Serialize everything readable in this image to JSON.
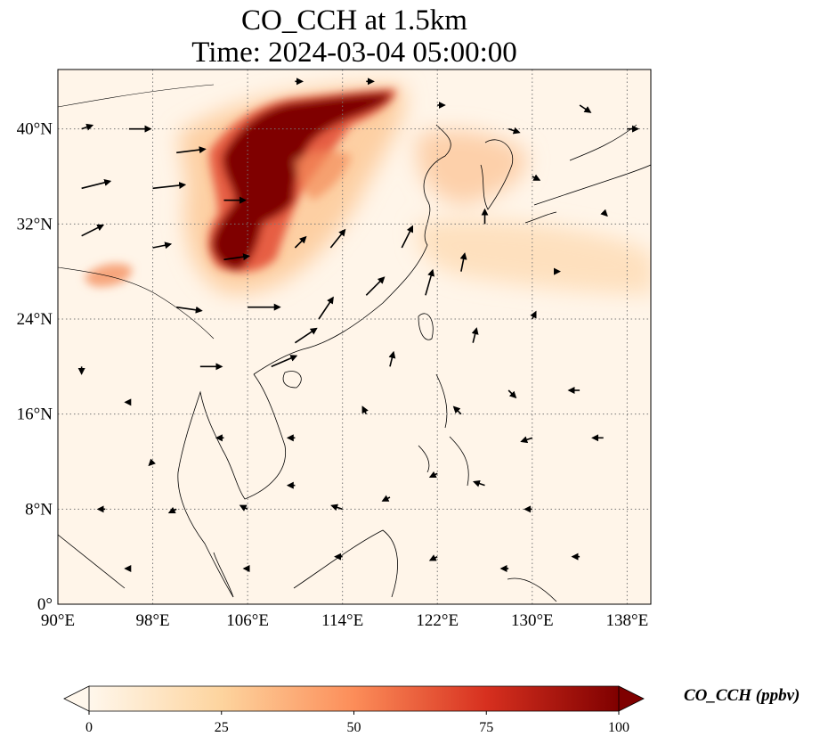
{
  "title": {
    "line1": "CO_CCH at 1.5km",
    "line2": "Time: 2024-03-04 05:00:00"
  },
  "map": {
    "projection": "PlateCarree",
    "lon_range": [
      90,
      140
    ],
    "lat_range": [
      0,
      45
    ],
    "gridlines": "dotted grey",
    "lon_ticks": [
      {
        "value": 90,
        "label": "90°E"
      },
      {
        "value": 98,
        "label": "98°E"
      },
      {
        "value": 106,
        "label": "106°E"
      },
      {
        "value": 114,
        "label": "114°E"
      },
      {
        "value": 122,
        "label": "122°E"
      },
      {
        "value": 130,
        "label": "130°E"
      },
      {
        "value": 138,
        "label": "138°E"
      }
    ],
    "lat_ticks": [
      {
        "value": 0,
        "label": "0°"
      },
      {
        "value": 8,
        "label": "8°N"
      },
      {
        "value": 16,
        "label": "16°N"
      },
      {
        "value": 24,
        "label": "24°N"
      },
      {
        "value": 32,
        "label": "32°N"
      },
      {
        "value": 40,
        "label": "40°N"
      }
    ],
    "colors": {
      "background": "#fff5e9",
      "coast": "#000000",
      "grid": "#777777",
      "wind_arrow": "#000000"
    }
  },
  "colorbar": {
    "label": "CO_CCH (ppbv)",
    "range": [
      0,
      100
    ],
    "ticks": [
      {
        "value": 0,
        "label": "0"
      },
      {
        "value": 25,
        "label": "25"
      },
      {
        "value": 50,
        "label": "50"
      },
      {
        "value": 75,
        "label": "75"
      },
      {
        "value": 100,
        "label": "100"
      }
    ],
    "colormap": "OrRd",
    "stops": [
      "#fff7ec",
      "#fdd49e",
      "#fc8d59",
      "#d7301f",
      "#7f0000"
    ],
    "extend": "both"
  },
  "plumes": [
    {
      "id": "central-china-plume",
      "lon": [
        102,
        118.5
      ],
      "lat": [
        26.5,
        42.5
      ],
      "value": 100
    },
    {
      "id": "tibet-patch",
      "lon": [
        92.5,
        96
      ],
      "lat": [
        26.5,
        29
      ],
      "value": 45
    },
    {
      "id": "north-china-plain-haze",
      "lon": [
        118,
        130
      ],
      "lat": [
        34,
        40
      ],
      "value": 30
    },
    {
      "id": "east-china-sea-haze",
      "lon": [
        120,
        140
      ],
      "lat": [
        26,
        34
      ],
      "value": 20
    }
  ],
  "wind_vectors": [
    {
      "lon": 92,
      "lat": 40,
      "u": 3,
      "v": 1
    },
    {
      "lon": 96,
      "lat": 40,
      "u": 6,
      "v": 0
    },
    {
      "lon": 100,
      "lat": 38,
      "u": 8,
      "v": 1
    },
    {
      "lon": 92,
      "lat": 35,
      "u": 8,
      "v": 2
    },
    {
      "lon": 98,
      "lat": 35,
      "u": 9,
      "v": 1
    },
    {
      "lon": 104,
      "lat": 34,
      "u": 6,
      "v": 0
    },
    {
      "lon": 92,
      "lat": 31,
      "u": 6,
      "v": 3
    },
    {
      "lon": 98,
      "lat": 30,
      "u": 5,
      "v": 1
    },
    {
      "lon": 104,
      "lat": 29,
      "u": 7,
      "v": 1
    },
    {
      "lon": 100,
      "lat": 25,
      "u": 7,
      "v": -1
    },
    {
      "lon": 106,
      "lat": 25,
      "u": 9,
      "v": 0
    },
    {
      "lon": 110,
      "lat": 22,
      "u": 6,
      "v": 4
    },
    {
      "lon": 102,
      "lat": 20,
      "u": 6,
      "v": 0
    },
    {
      "lon": 108,
      "lat": 20,
      "u": 7,
      "v": 3
    },
    {
      "lon": 112,
      "lat": 24,
      "u": 4,
      "v": 6
    },
    {
      "lon": 116,
      "lat": 26,
      "u": 5,
      "v": 5
    },
    {
      "lon": 119,
      "lat": 30,
      "u": 3,
      "v": 6
    },
    {
      "lon": 121,
      "lat": 26,
      "u": 2,
      "v": 7
    },
    {
      "lon": 113,
      "lat": 30,
      "u": 4,
      "v": 5
    },
    {
      "lon": 110,
      "lat": 30,
      "u": 3,
      "v": 3
    },
    {
      "lon": 124,
      "lat": 28,
      "u": 1,
      "v": 5
    },
    {
      "lon": 126,
      "lat": 32,
      "u": 0,
      "v": 4
    },
    {
      "lon": 125,
      "lat": 22,
      "u": 1,
      "v": 4
    },
    {
      "lon": 118,
      "lat": 20,
      "u": 1,
      "v": 4
    },
    {
      "lon": 130,
      "lat": 24,
      "u": 1,
      "v": 2
    },
    {
      "lon": 128,
      "lat": 18,
      "u": 2,
      "v": -2
    },
    {
      "lon": 124,
      "lat": 16,
      "u": -2,
      "v": 2
    },
    {
      "lon": 116,
      "lat": 16,
      "u": -1,
      "v": 2
    },
    {
      "lon": 130,
      "lat": 14,
      "u": -3,
      "v": -1
    },
    {
      "lon": 134,
      "lat": 18,
      "u": -3,
      "v": 0
    },
    {
      "lon": 136,
      "lat": 14,
      "u": -3,
      "v": 0
    },
    {
      "lon": 122,
      "lat": 11,
      "u": -2,
      "v": -1
    },
    {
      "lon": 126,
      "lat": 10,
      "u": -3,
      "v": 1
    },
    {
      "lon": 130,
      "lat": 8,
      "u": -2,
      "v": 0
    },
    {
      "lon": 118,
      "lat": 9,
      "u": -2,
      "v": -1
    },
    {
      "lon": 114,
      "lat": 8,
      "u": -3,
      "v": 1
    },
    {
      "lon": 110,
      "lat": 10,
      "u": -2,
      "v": 0
    },
    {
      "lon": 106,
      "lat": 8,
      "u": -2,
      "v": 1
    },
    {
      "lon": 100,
      "lat": 8,
      "u": -2,
      "v": -1
    },
    {
      "lon": 94,
      "lat": 8,
      "u": -2,
      "v": 0
    },
    {
      "lon": 98,
      "lat": 12,
      "u": -1,
      "v": -1
    },
    {
      "lon": 104,
      "lat": 14,
      "u": -2,
      "v": 0
    },
    {
      "lon": 110,
      "lat": 14,
      "u": -2,
      "v": 0
    },
    {
      "lon": 96,
      "lat": 17,
      "u": -1,
      "v": 0
    },
    {
      "lon": 92,
      "lat": 20,
      "u": 0,
      "v": -2
    },
    {
      "lon": 114,
      "lat": 4,
      "u": -2,
      "v": 0
    },
    {
      "lon": 106,
      "lat": 3,
      "u": -1,
      "v": 0
    },
    {
      "lon": 96,
      "lat": 3,
      "u": -1,
      "v": 0
    },
    {
      "lon": 122,
      "lat": 4,
      "u": -2,
      "v": -1
    },
    {
      "lon": 128,
      "lat": 3,
      "u": -2,
      "v": 0
    },
    {
      "lon": 134,
      "lat": 4,
      "u": -2,
      "v": 0
    },
    {
      "lon": 128,
      "lat": 40,
      "u": 3,
      "v": -1
    },
    {
      "lon": 134,
      "lat": 42,
      "u": 3,
      "v": -2
    },
    {
      "lon": 138,
      "lat": 40,
      "u": 3,
      "v": 0
    },
    {
      "lon": 122,
      "lat": 42,
      "u": 2,
      "v": 0
    },
    {
      "lon": 116,
      "lat": 44,
      "u": 2,
      "v": 0
    },
    {
      "lon": 110,
      "lat": 44,
      "u": 2,
      "v": 0
    },
    {
      "lon": 130,
      "lat": 36,
      "u": 2,
      "v": -1
    },
    {
      "lon": 136,
      "lat": 33,
      "u": 1,
      "v": -1
    },
    {
      "lon": 132,
      "lat": 28,
      "u": 1,
      "v": 0
    }
  ]
}
